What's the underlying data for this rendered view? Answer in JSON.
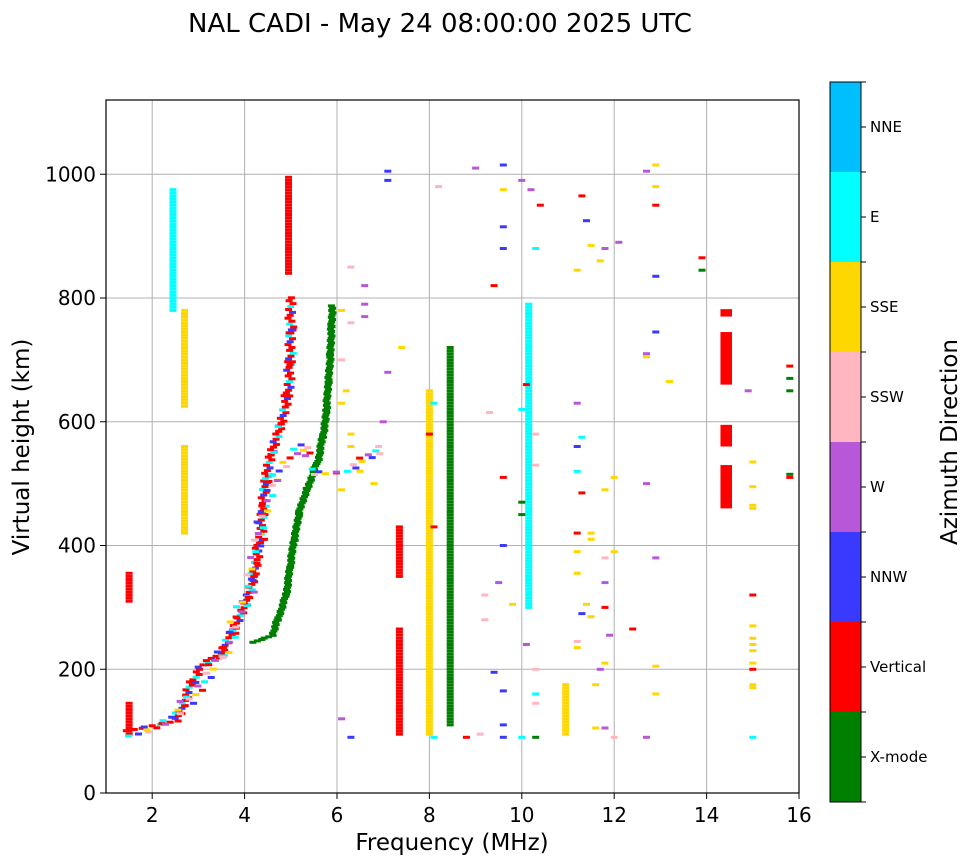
{
  "chart_data": {
    "type": "scatter",
    "title": "NAL CADI - May 24 08:00:00 2025 UTC",
    "xlabel": "Frequency (MHz)",
    "ylabel": "Virtual height (km)",
    "xlim": [
      1,
      16
    ],
    "ylim": [
      0,
      1120
    ],
    "xticks": [
      2,
      4,
      6,
      8,
      10,
      12,
      14,
      16
    ],
    "yticks": [
      0,
      200,
      400,
      600,
      800,
      1000
    ],
    "grid": true,
    "colorbar": {
      "label": "Azimuth Direction",
      "categories": [
        "X-mode",
        "Vertical",
        "NNW",
        "W",
        "SSW",
        "SSE",
        "E",
        "NNE"
      ],
      "colors": [
        "#008000",
        "#ff0000",
        "#3a3aff",
        "#b857d8",
        "#ffb6c1",
        "#ffd700",
        "#00ffff",
        "#00bfff"
      ]
    },
    "vertical_runs": [
      {
        "x": 1.5,
        "y": [
          95,
          145
        ],
        "c": "Vertical"
      },
      {
        "x": 1.5,
        "y": [
          310,
          355
        ],
        "c": "Vertical"
      },
      {
        "x": 2.45,
        "y": [
          780,
          975
        ],
        "c": "E"
      },
      {
        "x": 2.7,
        "y": [
          625,
          780
        ],
        "c": "SSE"
      },
      {
        "x": 2.7,
        "y": [
          420,
          560
        ],
        "c": "SSE"
      },
      {
        "x": 4.95,
        "y": [
          840,
          995
        ],
        "c": "Vertical"
      },
      {
        "x": 7.35,
        "y": [
          95,
          265
        ],
        "c": "Vertical"
      },
      {
        "x": 7.35,
        "y": [
          350,
          430
        ],
        "c": "Vertical"
      },
      {
        "x": 8.0,
        "y": [
          95,
          650
        ],
        "c": "SSE"
      },
      {
        "x": 8.45,
        "y": [
          110,
          720
        ],
        "c": "X-mode"
      },
      {
        "x": 10.15,
        "y": [
          300,
          790
        ],
        "c": "E"
      },
      {
        "x": 10.95,
        "y": [
          95,
          175
        ],
        "c": "SSE"
      }
    ],
    "curve_Vertical": [
      [
        1.5,
        105
      ],
      [
        2.0,
        110
      ],
      [
        2.5,
        115
      ],
      [
        3.0,
        200
      ],
      [
        3.5,
        225
      ],
      [
        4.0,
        300
      ],
      [
        4.2,
        350
      ],
      [
        4.35,
        420
      ],
      [
        4.45,
        500
      ],
      [
        4.55,
        540
      ],
      [
        4.8,
        600
      ],
      [
        4.95,
        650
      ],
      [
        5.0,
        720
      ],
      [
        5.0,
        800
      ]
    ],
    "curve_Xmode": [
      [
        4.2,
        245
      ],
      [
        4.6,
        255
      ],
      [
        4.9,
        320
      ],
      [
        5.05,
        400
      ],
      [
        5.2,
        460
      ],
      [
        5.4,
        500
      ],
      [
        5.6,
        540
      ],
      [
        5.75,
        600
      ],
      [
        5.85,
        700
      ],
      [
        5.9,
        790
      ]
    ],
    "curve_scatter": [
      [
        1.6,
        100
      ],
      [
        2.1,
        108
      ],
      [
        2.6,
        130
      ],
      [
        3.0,
        170
      ],
      [
        3.5,
        220
      ],
      [
        4.1,
        330
      ],
      [
        4.4,
        450
      ],
      [
        4.7,
        520
      ],
      [
        5.2,
        560
      ],
      [
        5.6,
        520
      ],
      [
        6.2,
        520
      ],
      [
        6.7,
        540
      ],
      [
        7.0,
        560
      ]
    ],
    "scattered": [
      [
        6.3,
        850,
        "SSW"
      ],
      [
        6.1,
        780,
        "SSE"
      ],
      [
        6.3,
        760,
        "SSW"
      ],
      [
        6.6,
        820,
        "W"
      ],
      [
        6.6,
        790,
        "W"
      ],
      [
        6.6,
        770,
        "W"
      ],
      [
        6.1,
        700,
        "SSW"
      ],
      [
        6.2,
        650,
        "SSE"
      ],
      [
        6.1,
        630,
        "SSE"
      ],
      [
        6.3,
        580,
        "SSE"
      ],
      [
        6.3,
        560,
        "SSE"
      ],
      [
        6.1,
        490,
        "SSE"
      ],
      [
        6.5,
        520,
        "SSE"
      ],
      [
        6.8,
        500,
        "SSE"
      ],
      [
        6.9,
        560,
        "SSW"
      ],
      [
        7.0,
        600,
        "W"
      ],
      [
        7.1,
        680,
        "W"
      ],
      [
        7.4,
        720,
        "SSE"
      ],
      [
        7.1,
        990,
        "NNW"
      ],
      [
        7.1,
        1005,
        "NNW"
      ],
      [
        6.1,
        120,
        "W"
      ],
      [
        6.3,
        90,
        "NNW"
      ],
      [
        8.2,
        980,
        "SSW"
      ],
      [
        8.1,
        630,
        "E"
      ],
      [
        8.0,
        580,
        "Vertical"
      ],
      [
        8.0,
        520,
        "SSE"
      ],
      [
        8.0,
        480,
        "SSE"
      ],
      [
        8.1,
        430,
        "Vertical"
      ],
      [
        8.0,
        300,
        "SSE"
      ],
      [
        8.0,
        200,
        "SSE"
      ],
      [
        8.0,
        130,
        "SSE"
      ],
      [
        8.1,
        90,
        "E"
      ],
      [
        9.0,
        1010,
        "W"
      ],
      [
        9.6,
        1015,
        "NNW"
      ],
      [
        9.6,
        975,
        "SSE"
      ],
      [
        9.6,
        915,
        "NNW"
      ],
      [
        9.6,
        880,
        "NNW"
      ],
      [
        9.4,
        820,
        "Vertical"
      ],
      [
        9.3,
        615,
        "SSW"
      ],
      [
        9.6,
        510,
        "Vertical"
      ],
      [
        9.6,
        400,
        "NNW"
      ],
      [
        9.5,
        340,
        "W"
      ],
      [
        9.2,
        320,
        "SSW"
      ],
      [
        9.2,
        280,
        "SSW"
      ],
      [
        9.4,
        195,
        "NNW"
      ],
      [
        9.6,
        165,
        "NNW"
      ],
      [
        9.6,
        110,
        "NNW"
      ],
      [
        9.6,
        90,
        "NNW"
      ],
      [
        9.1,
        95,
        "SSW"
      ],
      [
        8.8,
        90,
        "Vertical"
      ],
      [
        9.8,
        305,
        "SSE"
      ],
      [
        10.0,
        990,
        "W"
      ],
      [
        10.2,
        975,
        "W"
      ],
      [
        10.4,
        950,
        "Vertical"
      ],
      [
        10.3,
        880,
        "E"
      ],
      [
        10.0,
        620,
        "E"
      ],
      [
        10.1,
        660,
        "Vertical"
      ],
      [
        10.3,
        580,
        "SSW"
      ],
      [
        10.0,
        470,
        "X-mode"
      ],
      [
        10.0,
        450,
        "X-mode"
      ],
      [
        10.3,
        530,
        "SSW"
      ],
      [
        10.1,
        240,
        "W"
      ],
      [
        10.3,
        200,
        "SSW"
      ],
      [
        10.3,
        160,
        "E"
      ],
      [
        10.3,
        145,
        "SSW"
      ],
      [
        10.0,
        90,
        "E"
      ],
      [
        10.3,
        90,
        "X-mode"
      ],
      [
        11.3,
        965,
        "Vertical"
      ],
      [
        11.4,
        925,
        "NNW"
      ],
      [
        11.5,
        885,
        "SSE"
      ],
      [
        11.7,
        860,
        "SSE"
      ],
      [
        11.8,
        880,
        "W"
      ],
      [
        12.1,
        890,
        "W"
      ],
      [
        11.2,
        845,
        "SSE"
      ],
      [
        11.2,
        630,
        "W"
      ],
      [
        11.3,
        575,
        "E"
      ],
      [
        11.2,
        560,
        "NNW"
      ],
      [
        11.2,
        520,
        "E"
      ],
      [
        11.3,
        485,
        "Vertical"
      ],
      [
        11.8,
        490,
        "SSE"
      ],
      [
        12.0,
        510,
        "SSE"
      ],
      [
        11.2,
        420,
        "Vertical"
      ],
      [
        11.5,
        420,
        "SSE"
      ],
      [
        11.5,
        410,
        "SSE"
      ],
      [
        11.2,
        390,
        "SSE"
      ],
      [
        11.2,
        355,
        "SSE"
      ],
      [
        11.8,
        380,
        "SSW"
      ],
      [
        12.0,
        390,
        "SSE"
      ],
      [
        11.8,
        340,
        "W"
      ],
      [
        11.3,
        290,
        "NNW"
      ],
      [
        11.4,
        305,
        "SSE"
      ],
      [
        11.5,
        285,
        "SSE"
      ],
      [
        11.8,
        300,
        "Vertical"
      ],
      [
        11.9,
        255,
        "W"
      ],
      [
        12.4,
        265,
        "Vertical"
      ],
      [
        11.2,
        245,
        "SSW"
      ],
      [
        11.2,
        235,
        "SSE"
      ],
      [
        11.8,
        210,
        "SSE"
      ],
      [
        11.7,
        200,
        "W"
      ],
      [
        11.6,
        175,
        "SSE"
      ],
      [
        11.6,
        105,
        "SSE"
      ],
      [
        11.8,
        105,
        "W"
      ],
      [
        12.0,
        90,
        "SSW"
      ],
      [
        12.9,
        1015,
        "SSE"
      ],
      [
        12.7,
        1005,
        "W"
      ],
      [
        12.9,
        980,
        "SSE"
      ],
      [
        12.9,
        950,
        "Vertical"
      ],
      [
        12.9,
        835,
        "NNW"
      ],
      [
        12.9,
        745,
        "NNW"
      ],
      [
        12.7,
        710,
        "W"
      ],
      [
        12.7,
        705,
        "SSE"
      ],
      [
        13.2,
        665,
        "SSE"
      ],
      [
        12.7,
        500,
        "W"
      ],
      [
        12.9,
        380,
        "W"
      ],
      [
        12.9,
        205,
        "SSE"
      ],
      [
        12.9,
        160,
        "SSE"
      ],
      [
        12.7,
        90,
        "W"
      ],
      [
        13.9,
        865,
        "Vertical"
      ],
      [
        13.9,
        845,
        "X-mode"
      ],
      [
        14.9,
        650,
        "W"
      ],
      [
        15.0,
        535,
        "SSE"
      ],
      [
        15.0,
        495,
        "SSE"
      ],
      [
        15.0,
        465,
        "SSE"
      ],
      [
        15.0,
        460,
        "SSE"
      ],
      [
        15.0,
        320,
        "Vertical"
      ],
      [
        15.0,
        270,
        "SSE"
      ],
      [
        15.0,
        250,
        "SSE"
      ],
      [
        15.0,
        240,
        "SSE"
      ],
      [
        15.0,
        230,
        "SSE"
      ],
      [
        15.0,
        210,
        "SSE"
      ],
      [
        15.0,
        200,
        "Vertical"
      ],
      [
        15.0,
        175,
        "SSE"
      ],
      [
        15.0,
        170,
        "SSE"
      ],
      [
        15.0,
        90,
        "E"
      ],
      [
        15.8,
        690,
        "Vertical"
      ],
      [
        15.8,
        670,
        "X-mode"
      ],
      [
        15.8,
        650,
        "X-mode"
      ],
      [
        15.8,
        515,
        "X-mode"
      ],
      [
        15.8,
        510,
        "Vertical"
      ]
    ],
    "blocks": [
      {
        "x": [
          14.3,
          14.55
        ],
        "y": [
          770,
          782
        ],
        "c": "Vertical"
      },
      {
        "x": [
          14.3,
          14.55
        ],
        "y": [
          660,
          745
        ],
        "c": "Vertical"
      },
      {
        "x": [
          14.3,
          14.55
        ],
        "y": [
          560,
          595
        ],
        "c": "Vertical"
      },
      {
        "x": [
          14.3,
          14.55
        ],
        "y": [
          460,
          530
        ],
        "c": "Vertical"
      }
    ]
  }
}
